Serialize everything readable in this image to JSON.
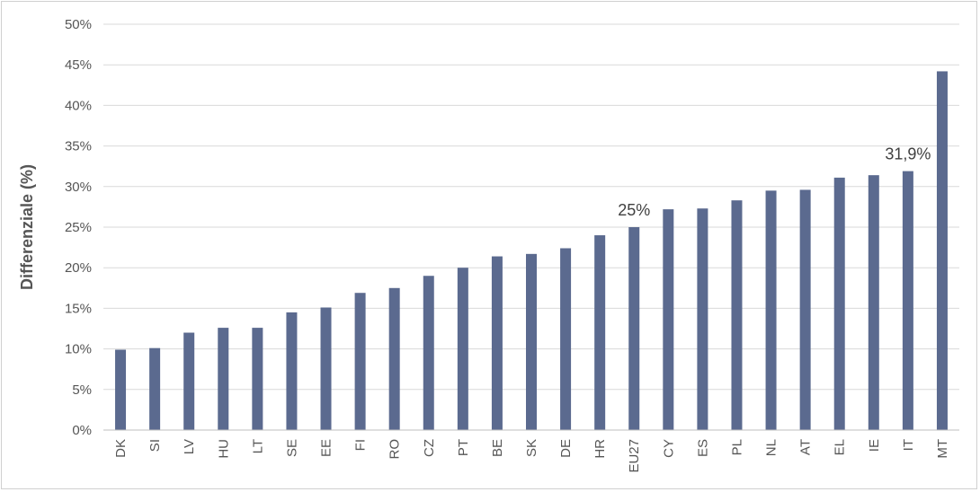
{
  "chart_data": {
    "type": "bar",
    "title": "",
    "xlabel": "",
    "ylabel": "Differenziale (%)",
    "ylim": [
      0,
      50
    ],
    "yticks": [
      "0%",
      "5%",
      "10%",
      "15%",
      "20%",
      "25%",
      "30%",
      "35%",
      "40%",
      "45%",
      "50%"
    ],
    "grid": true,
    "bar_color": "#5b6a8f",
    "categories": [
      "DK",
      "SI",
      "LV",
      "HU",
      "LT",
      "SE",
      "EE",
      "FI",
      "RO",
      "CZ",
      "PT",
      "BE",
      "SK",
      "DE",
      "HR",
      "EU27",
      "CY",
      "ES",
      "PL",
      "NL",
      "AT",
      "EL",
      "IE",
      "IT",
      "MT"
    ],
    "values": [
      9.9,
      10.1,
      12.0,
      12.6,
      12.6,
      14.5,
      15.1,
      16.9,
      17.5,
      19.0,
      20.0,
      21.4,
      21.7,
      22.4,
      24.0,
      25.0,
      27.2,
      27.3,
      28.3,
      29.5,
      29.6,
      31.1,
      31.4,
      31.9,
      44.2
    ],
    "data_labels": [
      {
        "category": "EU27",
        "text": "25%"
      },
      {
        "category": "IT",
        "text": "31,9%"
      }
    ]
  }
}
